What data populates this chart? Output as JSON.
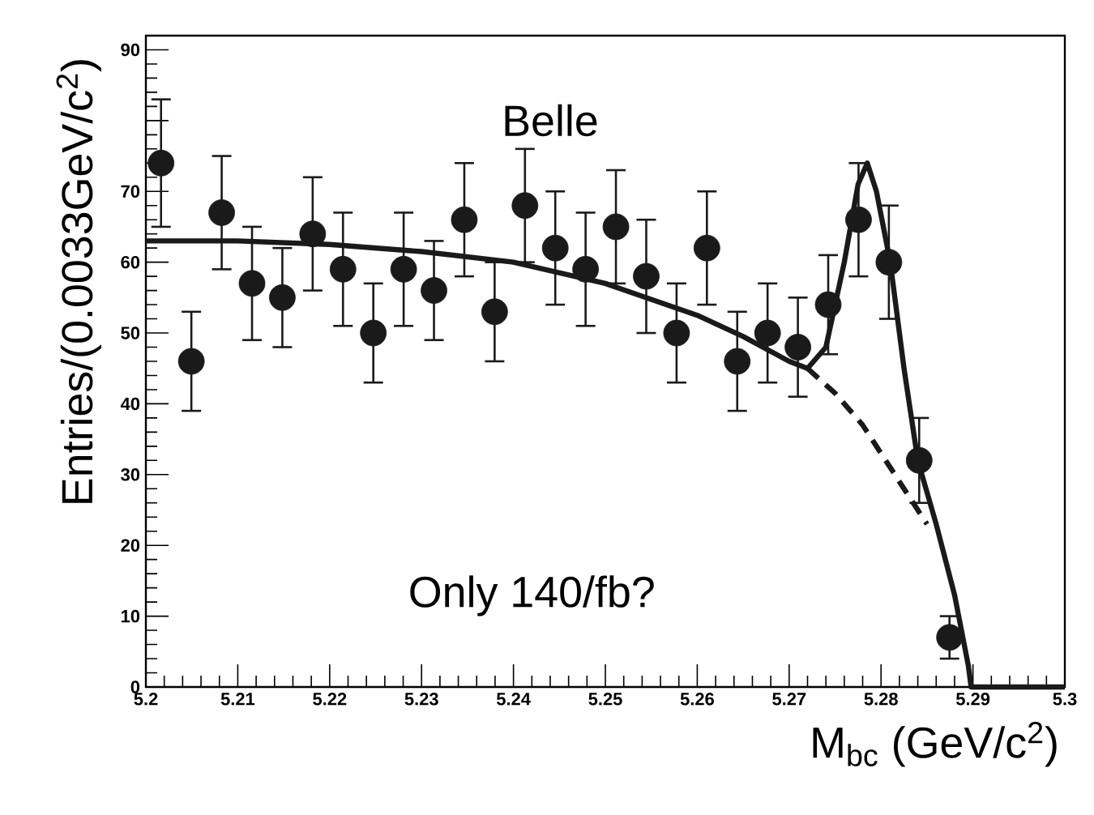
{
  "chart_data": {
    "type": "scatter",
    "xlabel": "M$_{bc}$ (GeV/c$^{2}$)",
    "ylabel": "Entries/(0.0033GeV/c$^{2}$)",
    "annotations": [
      "Belle",
      "Only 140/fb?"
    ],
    "xlim": [
      5.2,
      5.3
    ],
    "ylim": [
      0,
      92
    ],
    "xticks": [
      5.2,
      5.21,
      5.22,
      5.23,
      5.24,
      5.25,
      5.26,
      5.27,
      5.28,
      5.29,
      5.3
    ],
    "yticks": [
      0,
      10,
      20,
      30,
      40,
      50,
      60,
      70,
      {
        "value": 80,
        "label": null
      },
      90
    ],
    "grid": false,
    "series": [
      {
        "color": "#1a1a1a",
        "marker": "circle",
        "x": [
          5.20165,
          5.20495,
          5.20825,
          5.21155,
          5.21485,
          5.21815,
          5.22145,
          5.22475,
          5.22805,
          5.23135,
          5.23465,
          5.23795,
          5.24125,
          5.24455,
          5.24785,
          5.25115,
          5.25445,
          5.25775,
          5.26105,
          5.26435,
          5.26765,
          5.27095,
          5.27425,
          5.27755,
          5.28085,
          5.28415,
          5.28745
        ],
        "values": [
          74,
          46,
          67,
          57,
          55,
          64,
          59,
          50,
          59,
          56,
          66,
          53,
          68,
          62,
          59,
          65,
          58,
          50,
          62,
          46,
          50,
          48,
          54,
          66,
          60,
          32,
          7
        ],
        "errors": [
          9,
          7,
          8,
          8,
          7,
          8,
          8,
          7,
          8,
          7,
          8,
          7,
          8,
          8,
          8,
          8,
          8,
          7,
          8,
          7,
          7,
          7,
          7,
          8,
          8,
          6,
          3
        ]
      },
      {
        "type": "line",
        "color": "#1a1a1a",
        "marker": "none",
        "line_style": "solid",
        "x": [
          5.2,
          5.21,
          5.22,
          5.23,
          5.24,
          5.25,
          5.26,
          5.265,
          5.27,
          5.272,
          5.274,
          5.276,
          5.2775,
          5.2785,
          5.2795,
          5.281,
          5.2825,
          5.284,
          5.286,
          5.288,
          5.2895,
          5.2898,
          5.3
        ],
        "values": [
          63,
          63,
          62.5,
          61.5,
          60,
          57,
          52.5,
          49.5,
          46,
          45,
          48,
          60,
          71,
          74,
          70,
          60,
          45,
          32,
          23,
          13,
          3,
          0,
          0
        ]
      },
      {
        "type": "line",
        "color": "#1a1a1a",
        "marker": "none",
        "line_style": "dashed",
        "x": [
          5.272,
          5.275,
          5.278,
          5.281,
          5.284,
          5.285
        ],
        "values": [
          45,
          41.5,
          37,
          31,
          25,
          23
        ]
      }
    ]
  }
}
